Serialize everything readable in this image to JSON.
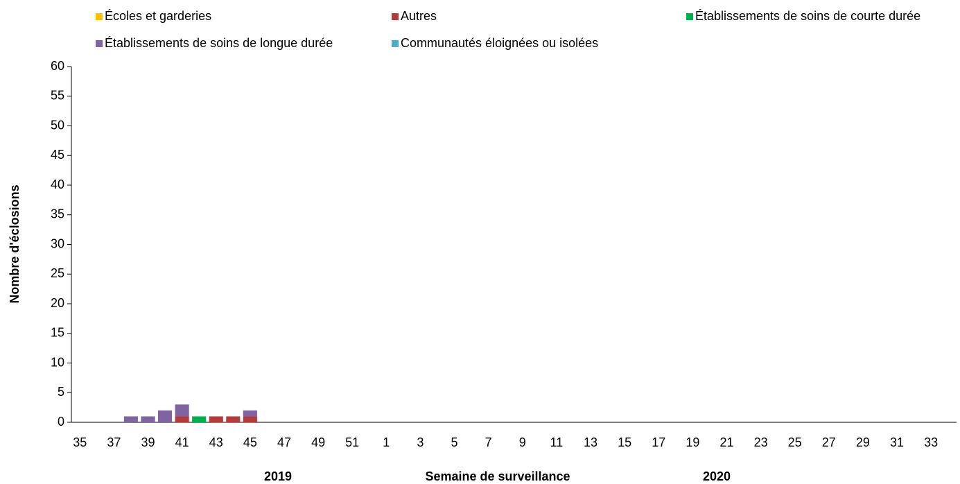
{
  "chart_data": {
    "type": "stacked_bar",
    "xlabel": "Semaine de surveillance",
    "ylabel": "Nombre d'éclosions",
    "annotations": [
      "2019",
      "2020"
    ],
    "categories": [
      35,
      null,
      37,
      null,
      39,
      null,
      41,
      null,
      43,
      null,
      45,
      null,
      47,
      null,
      49,
      null,
      51,
      null,
      1,
      null,
      3,
      null,
      5,
      null,
      7,
      null,
      9,
      null,
      11,
      null,
      13,
      null,
      15,
      null,
      17,
      null,
      19,
      null,
      21,
      null,
      23,
      null,
      25,
      null,
      27,
      null,
      29,
      null,
      31,
      null,
      33,
      null
    ],
    "series": [
      {
        "name": "Écoles et garderies",
        "color": "#ffc000",
        "values": [
          0,
          0,
          0,
          0,
          0,
          0,
          0,
          0,
          0,
          0,
          0,
          0,
          0,
          0,
          0,
          0,
          0,
          0,
          0,
          0,
          0,
          0,
          0,
          0,
          0,
          0,
          0,
          0,
          0,
          0,
          0,
          0,
          0,
          0,
          0,
          0,
          0,
          0,
          0,
          0,
          0,
          0,
          0,
          0,
          0,
          0,
          0,
          0,
          0,
          0,
          0,
          0
        ]
      },
      {
        "name": "Autres",
        "color": "#b33b3b",
        "values": [
          0,
          0,
          0,
          0,
          0,
          0,
          1,
          0,
          1,
          1,
          1,
          0,
          0,
          0,
          0,
          0,
          0,
          0,
          0,
          0,
          0,
          0,
          0,
          0,
          0,
          0,
          0,
          0,
          0,
          0,
          0,
          0,
          0,
          0,
          0,
          0,
          0,
          0,
          0,
          0,
          0,
          0,
          0,
          0,
          0,
          0,
          0,
          0,
          0,
          0,
          0,
          0
        ]
      },
      {
        "name": "Établissements de soins de courte durée",
        "color": "#00b050",
        "values": [
          0,
          0,
          0,
          0,
          0,
          0,
          0,
          1,
          0,
          0,
          0,
          0,
          0,
          0,
          0,
          0,
          0,
          0,
          0,
          0,
          0,
          0,
          0,
          0,
          0,
          0,
          0,
          0,
          0,
          0,
          0,
          0,
          0,
          0,
          0,
          0,
          0,
          0,
          0,
          0,
          0,
          0,
          0,
          0,
          0,
          0,
          0,
          0,
          0,
          0,
          0,
          0
        ]
      },
      {
        "name": "Établissements de soins de longue durée",
        "color": "#8064a2",
        "values": [
          0,
          0,
          0,
          1,
          1,
          2,
          2,
          0,
          0,
          0,
          1,
          0,
          0,
          0,
          0,
          0,
          0,
          0,
          0,
          0,
          0,
          0,
          0,
          0,
          0,
          0,
          0,
          0,
          0,
          0,
          0,
          0,
          0,
          0,
          0,
          0,
          0,
          0,
          0,
          0,
          0,
          0,
          0,
          0,
          0,
          0,
          0,
          0,
          0,
          0,
          0,
          0
        ]
      },
      {
        "name": "Communautés éloignées ou isolées",
        "color": "#4bacc6",
        "values": [
          0,
          0,
          0,
          0,
          0,
          0,
          0,
          0,
          0,
          0,
          0,
          0,
          0,
          0,
          0,
          0,
          0,
          0,
          0,
          0,
          0,
          0,
          0,
          0,
          0,
          0,
          0,
          0,
          0,
          0,
          0,
          0,
          0,
          0,
          0,
          0,
          0,
          0,
          0,
          0,
          0,
          0,
          0,
          0,
          0,
          0,
          0,
          0,
          0,
          0,
          0,
          0
        ]
      }
    ],
    "ylim": [
      0,
      60
    ],
    "yticks": [
      0,
      5,
      10,
      15,
      20,
      25,
      30,
      35,
      40,
      45,
      50,
      55,
      60
    ]
  }
}
